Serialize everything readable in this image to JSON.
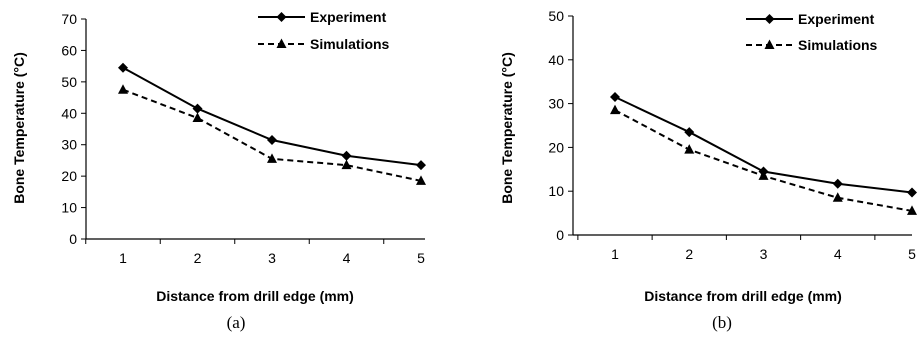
{
  "chart_data": [
    {
      "type": "line",
      "caption": "(a)",
      "xlabel": "Distance from drill edge (mm)",
      "ylabel": "Bone Temperature  (°C)",
      "categories": [
        "1",
        "2",
        "3",
        "4",
        "5"
      ],
      "ylim": [
        0,
        70
      ],
      "yticks": [
        0,
        10,
        20,
        30,
        40,
        50,
        60,
        70
      ],
      "legend_position": "top-right",
      "series": [
        {
          "name": "Experiment",
          "values": [
            54.5,
            41.5,
            31.5,
            26.5,
            23.5
          ],
          "marker": "diamond",
          "line": "solid",
          "color": "#000000"
        },
        {
          "name": "Simulations",
          "values": [
            47.5,
            38.5,
            25.5,
            23.5,
            18.5
          ],
          "marker": "triangle",
          "line": "dashed",
          "color": "#000000"
        }
      ]
    },
    {
      "type": "line",
      "caption": "(b)",
      "xlabel": "Distance from drill edge (mm)",
      "ylabel": "Bone Temperature  (°C)",
      "categories": [
        "1",
        "2",
        "3",
        "4",
        "5"
      ],
      "ylim": [
        0,
        50
      ],
      "yticks": [
        0,
        10,
        20,
        30,
        40,
        50
      ],
      "legend_position": "top-right",
      "series": [
        {
          "name": "Experiment",
          "values": [
            31.5,
            23.5,
            14.5,
            11.7,
            9.7
          ],
          "marker": "diamond",
          "line": "solid",
          "color": "#000000"
        },
        {
          "name": "Simulations",
          "values": [
            28.5,
            19.5,
            13.5,
            8.5,
            5.5
          ],
          "marker": "triangle",
          "line": "dashed",
          "color": "#000000"
        }
      ]
    }
  ]
}
